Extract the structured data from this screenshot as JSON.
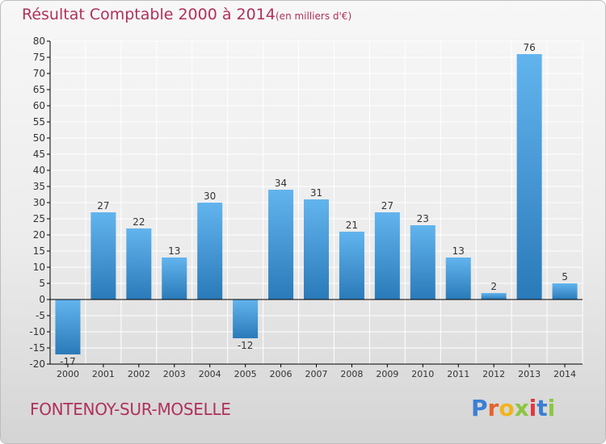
{
  "title": "Résultat Comptable 2000 à 2014",
  "subtitle": "(en milliers d'€)",
  "commune": "FONTENOY-SUR-MOSELLE",
  "logo": {
    "letters": [
      "P",
      "r",
      "o",
      "x",
      "i",
      "t",
      "i"
    ],
    "colors": [
      "#3a7fd5",
      "#e5622a",
      "#f2b41b",
      "#8cc63f",
      "#e2373f",
      "#3a7fd5",
      "#8cc63f"
    ]
  },
  "colors": {
    "title": "#b0305c",
    "bar_light": "#62b4ee",
    "bar_dark": "#2a7ab9",
    "axis": "#000000",
    "grid": "#ffffff",
    "label": "#333333"
  },
  "chart_data": {
    "type": "bar",
    "categories": [
      "2000",
      "2001",
      "2002",
      "2003",
      "2004",
      "2005",
      "2006",
      "2007",
      "2008",
      "2009",
      "2010",
      "2011",
      "2012",
      "2013",
      "2014"
    ],
    "values": [
      -17,
      27,
      22,
      13,
      30,
      -12,
      34,
      31,
      21,
      27,
      23,
      13,
      2,
      76,
      5
    ],
    "data_labels": [
      "-17",
      "27",
      "22",
      "13",
      "30",
      "-12",
      "34",
      "31",
      "21",
      "27",
      "23",
      "13",
      "2",
      "76",
      "5"
    ],
    "yticks": [
      80,
      75,
      70,
      65,
      60,
      55,
      50,
      45,
      40,
      35,
      30,
      25,
      20,
      15,
      10,
      5,
      0,
      -5,
      -10,
      -15,
      -20
    ],
    "ylim": [
      -20,
      80
    ],
    "grid": true,
    "legend": "none"
  }
}
